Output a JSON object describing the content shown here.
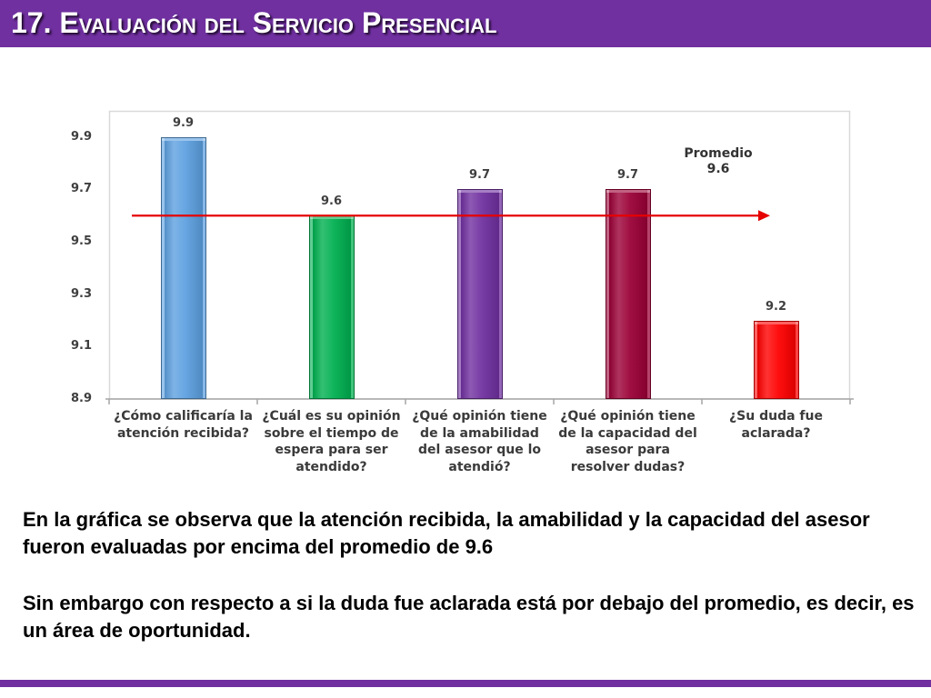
{
  "header": {
    "title": "17. Evaluación del Servicio Presencial",
    "background_color": "#7030A0"
  },
  "chart_data": {
    "type": "bar",
    "categories": [
      "¿Cómo calificaría la\natención recibida?",
      "¿Cuál es su opinión\nsobre el tiempo de\nespera para ser\natendido?",
      "¿Qué opinión tiene\nde la amabilidad\ndel asesor que lo\natendió?",
      "¿Qué opinión tiene\nde la capacidad del\nasesor para\nresolver dudas?",
      "¿Su duda fue\naclarada?"
    ],
    "series": [
      {
        "values": [
          9.9,
          9.6,
          9.7,
          9.7,
          9.2
        ]
      }
    ],
    "colors": [
      "#5DA0E0",
      "#00B050",
      "#7030A0",
      "#9B0036",
      "#FF0000"
    ],
    "data_labels": true,
    "ylim": [
      8.9,
      10.0
    ],
    "yticks": [
      8.9,
      9.1,
      9.3,
      9.5,
      9.7,
      9.9
    ],
    "grid": false,
    "average": {
      "label": "Promedio",
      "value": 9.6,
      "color": "#E60000"
    }
  },
  "summary": {
    "paragraphs": [
      "En la gráfica se observa que la atención recibida, la amabilidad y la capacidad del asesor fueron evaluadas por encima del promedio de 9.6",
      "Sin embargo con respecto a si la duda fue aclarada está por debajo del promedio, es decir, es un área de oportunidad."
    ]
  },
  "footer": {
    "bar_color": "#7030A0"
  }
}
